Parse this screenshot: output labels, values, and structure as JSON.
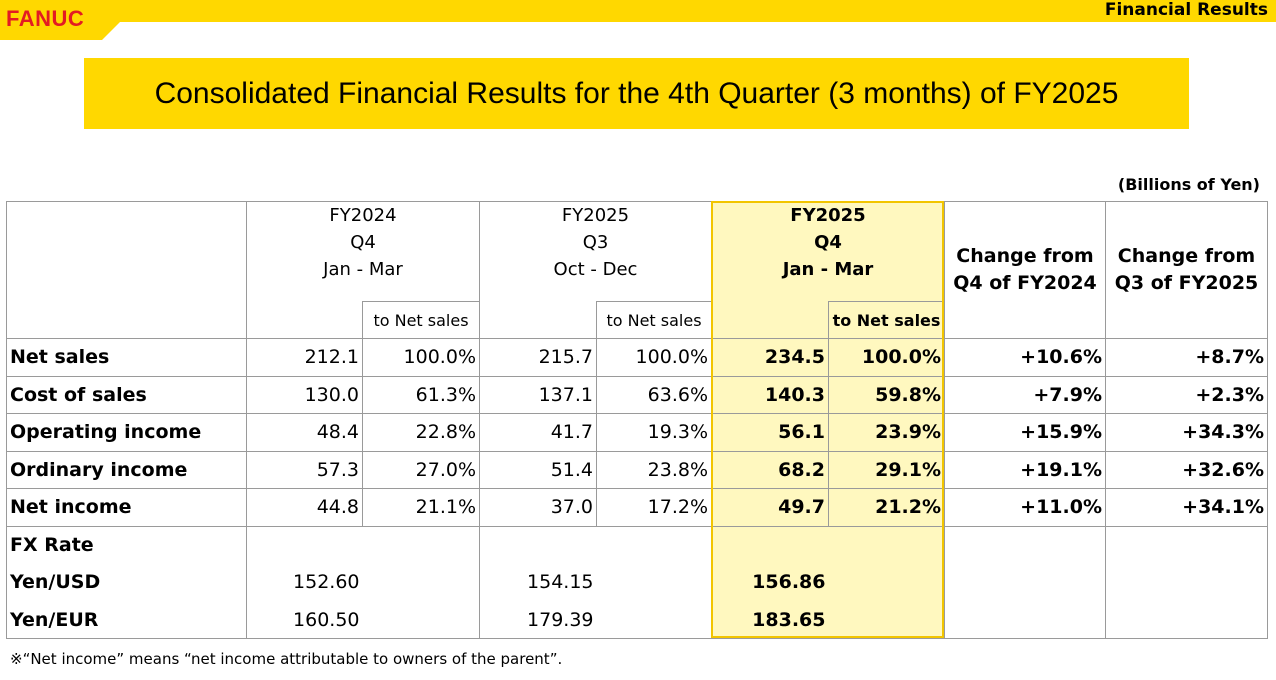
{
  "header": {
    "logo": "FANUC",
    "section": "Financial Results"
  },
  "title": "Consolidated Financial Results for the 4th Quarter (3 months) of FY2025",
  "unit": "(Billions of Yen)",
  "columns": {
    "fy2024q4": [
      "FY2024",
      "Q4",
      "Jan - Mar"
    ],
    "fy2025q3": [
      "FY2025",
      "Q3",
      "Oct - Dec"
    ],
    "fy2025q4": [
      "FY2025",
      "Q4",
      "Jan - Mar"
    ],
    "to_net_sales": "to Net sales",
    "change_prev_year": [
      "Change from",
      "Q4 of FY2024"
    ],
    "change_prev_quarter": [
      "Change from",
      "Q3 of FY2025"
    ]
  },
  "rows": [
    {
      "label": "Net sales",
      "fy2024q4": "212.1",
      "fy2024q4_pct": "100.0%",
      "fy2025q3": "215.7",
      "fy2025q3_pct": "100.0%",
      "fy2025q4": "234.5",
      "fy2025q4_pct": "100.0%",
      "chg_yoy": "+10.6%",
      "chg_qoq": "+8.7%"
    },
    {
      "label": "Cost of sales",
      "fy2024q4": "130.0",
      "fy2024q4_pct": "61.3%",
      "fy2025q3": "137.1",
      "fy2025q3_pct": "63.6%",
      "fy2025q4": "140.3",
      "fy2025q4_pct": "59.8%",
      "chg_yoy": "+7.9%",
      "chg_qoq": "+2.3%"
    },
    {
      "label": "Operating income",
      "fy2024q4": "48.4",
      "fy2024q4_pct": "22.8%",
      "fy2025q3": "41.7",
      "fy2025q3_pct": "19.3%",
      "fy2025q4": "56.1",
      "fy2025q4_pct": "23.9%",
      "chg_yoy": "+15.9%",
      "chg_qoq": "+34.3%"
    },
    {
      "label": "Ordinary income",
      "fy2024q4": "57.3",
      "fy2024q4_pct": "27.0%",
      "fy2025q3": "51.4",
      "fy2025q3_pct": "23.8%",
      "fy2025q4": "68.2",
      "fy2025q4_pct": "29.1%",
      "chg_yoy": "+19.1%",
      "chg_qoq": "+32.6%"
    },
    {
      "label": "Net income",
      "fy2024q4": "44.8",
      "fy2024q4_pct": "21.1%",
      "fy2025q3": "37.0",
      "fy2025q3_pct": "17.2%",
      "fy2025q4": "49.7",
      "fy2025q4_pct": "21.2%",
      "chg_yoy": "+11.0%",
      "chg_qoq": "+34.1%"
    }
  ],
  "fx": {
    "label": "FX Rate",
    "usd": {
      "label": "Yen/USD",
      "fy2024q4": "152.60",
      "fy2025q3": "154.15",
      "fy2025q4": "156.86"
    },
    "eur": {
      "label": "Yen/EUR",
      "fy2024q4": "160.50",
      "fy2025q3": "179.39",
      "fy2025q4": "183.65"
    }
  },
  "footnote": "※“Net income” means “net income attributable to owners of the parent”.",
  "colors": {
    "brand_yellow": "#ffd800",
    "logo_red": "#e31b23",
    "highlight_fill": "#fff8bf",
    "highlight_border": "#f2c500"
  }
}
